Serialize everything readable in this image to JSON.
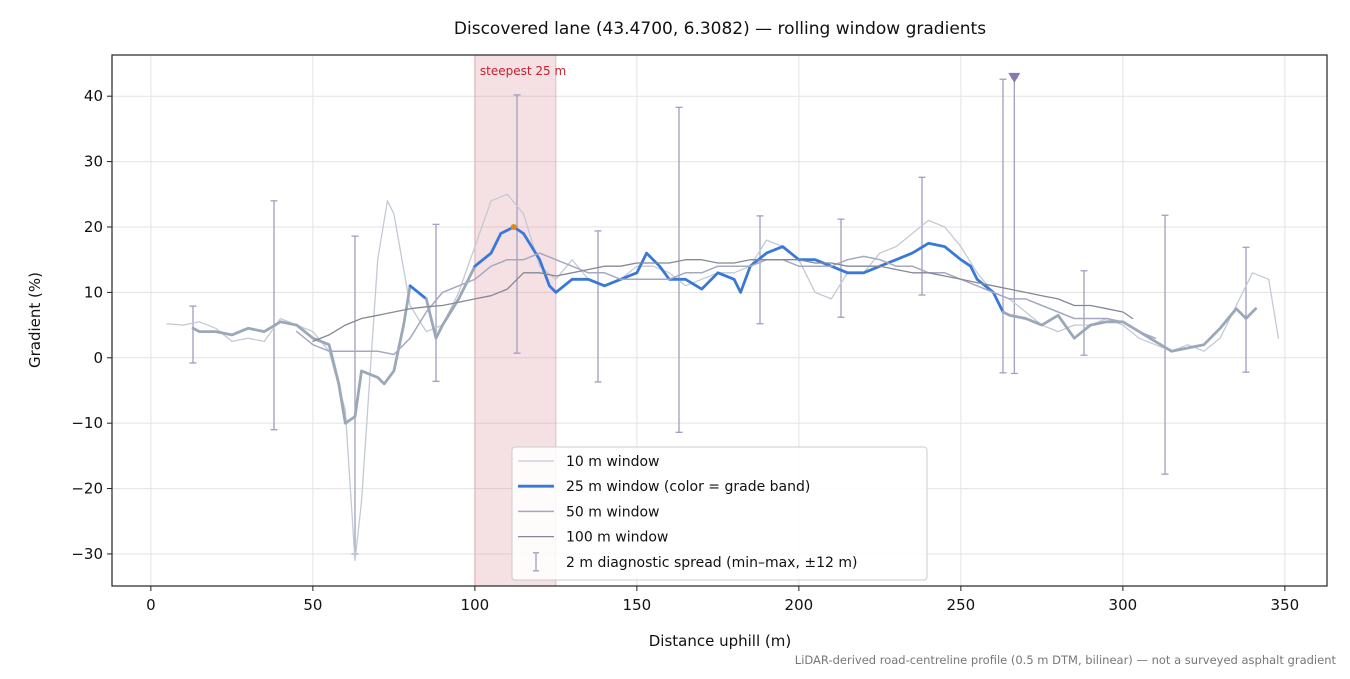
{
  "chart_data": {
    "type": "line",
    "title": "Discovered lane (43.4700, 6.3082) — rolling window gradients",
    "x_label": "Distance uphill (m)",
    "y_label": "Gradient (%)",
    "footnote": "LiDAR-derived road-centreline profile (0.5 m DTM, bilinear) — not a surveyed asphalt gradient",
    "xlim": [
      -12,
      363
    ],
    "ylim": [
      -34.9,
      46.3
    ],
    "xticks": [
      0,
      50,
      100,
      150,
      200,
      250,
      300,
      350
    ],
    "yticks": [
      {
        "value": -30,
        "label": "−30"
      },
      {
        "value": -20,
        "label": "−20"
      },
      {
        "value": -10,
        "label": "−10"
      },
      0,
      10,
      20,
      30,
      40
    ],
    "grid": true,
    "legend": "lower center",
    "highlight": {
      "label": "steepest 25 m",
      "x": [
        100,
        125
      ],
      "color": "#d9838e"
    },
    "steepest_marker": {
      "x": 112,
      "y": 20,
      "color": "#e08a1e"
    },
    "peak_marker": {
      "x": 266.5,
      "y": 42.8,
      "color": "#8a78b0"
    },
    "series": [
      {
        "name": "10 m window",
        "color": "#c3cad5",
        "width": 1.3,
        "x": [
          5,
          10,
          15,
          20,
          25,
          30,
          35,
          40,
          45,
          50,
          55,
          60,
          63,
          65,
          70,
          73,
          75,
          80,
          85,
          90,
          95,
          100,
          105,
          110,
          115,
          120,
          125,
          130,
          135,
          140,
          145,
          150,
          155,
          160,
          165,
          170,
          175,
          180,
          185,
          190,
          195,
          200,
          205,
          210,
          215,
          220,
          225,
          230,
          235,
          240,
          245,
          250,
          255,
          260,
          265,
          270,
          275,
          280,
          285,
          290,
          295,
          300,
          305,
          310,
          315,
          320,
          325,
          330,
          335,
          340,
          345,
          348
        ],
        "values": [
          5.2,
          5,
          5.5,
          4.5,
          2.5,
          3,
          2.5,
          6,
          5,
          4,
          1,
          -8,
          -31,
          -22,
          15,
          24,
          22,
          8,
          4,
          5,
          10,
          17,
          24,
          25,
          22,
          14,
          12,
          15,
          12,
          11,
          12,
          14,
          14,
          13,
          11,
          12,
          13,
          13,
          14,
          18,
          17,
          15,
          10,
          9,
          13,
          13,
          16,
          17,
          19,
          21,
          20,
          17,
          13,
          10,
          9,
          7,
          5,
          4,
          5,
          5,
          6,
          5,
          3,
          2,
          1,
          2,
          1,
          3,
          8,
          13,
          12,
          3
        ]
      },
      {
        "name": "25 m window (color = grade band)",
        "color": "#3a78d8",
        "low_color": "#9aa8b8",
        "band_threshold": 10,
        "width": 2.8,
        "x": [
          13,
          15,
          20,
          25,
          30,
          35,
          40,
          45,
          50,
          55,
          58,
          60,
          63,
          65,
          70,
          72,
          75,
          78,
          80,
          85,
          88,
          90,
          95,
          100,
          105,
          108,
          112,
          115,
          120,
          123,
          125,
          130,
          135,
          140,
          145,
          150,
          153,
          157,
          160,
          165,
          170,
          175,
          180,
          182,
          185,
          190,
          195,
          200,
          205,
          210,
          215,
          220,
          225,
          230,
          235,
          240,
          245,
          250,
          253,
          255,
          260,
          263,
          265,
          270,
          275,
          280,
          285,
          290,
          295,
          300,
          305,
          310,
          315,
          320,
          325,
          330,
          335,
          338,
          341
        ],
        "values": [
          4.5,
          4,
          4,
          3.5,
          4.5,
          4,
          5.5,
          5,
          3,
          2,
          -4,
          -10,
          -9,
          -2,
          -3,
          -4,
          -2,
          5,
          11,
          9,
          3,
          5,
          9,
          14,
          16,
          19,
          20,
          19,
          15,
          11,
          10,
          12,
          12,
          11,
          12,
          13,
          16,
          14,
          12,
          12,
          10.5,
          13,
          12,
          10,
          14,
          16,
          17,
          15,
          15,
          14,
          13,
          13,
          14,
          15,
          16,
          17.5,
          17,
          15,
          14,
          12,
          10,
          7,
          6.5,
          6,
          5,
          6.5,
          3,
          5,
          5.5,
          5.5,
          4,
          2.5,
          1,
          1.5,
          2,
          4.5,
          7.5,
          6,
          7.5
        ]
      },
      {
        "name": "50 m window",
        "color": "#a6a8c2",
        "width": 1.5,
        "x": [
          45,
          50,
          55,
          60,
          65,
          70,
          75,
          80,
          85,
          90,
          95,
          100,
          105,
          110,
          115,
          120,
          125,
          130,
          135,
          140,
          145,
          150,
          155,
          160,
          165,
          170,
          175,
          180,
          185,
          190,
          195,
          200,
          205,
          210,
          215,
          220,
          225,
          230,
          235,
          240,
          245,
          250,
          255,
          260,
          265,
          270,
          275,
          280,
          285,
          290,
          295,
          300,
          305,
          310
        ],
        "values": [
          4,
          2,
          1,
          1,
          1,
          1,
          0.5,
          3,
          7,
          10,
          11,
          12,
          14,
          15,
          15,
          16,
          15,
          14,
          13,
          13,
          12,
          12,
          12,
          12,
          13,
          13,
          14,
          14,
          14,
          15,
          15,
          14,
          14,
          14,
          15,
          15.5,
          15,
          14,
          14,
          13,
          13,
          12,
          11,
          10,
          9,
          9,
          8,
          7,
          6,
          6,
          6,
          5.5,
          4,
          3
        ]
      },
      {
        "name": "100 m window",
        "color": "#858996",
        "width": 1.3,
        "x": [
          50,
          55,
          60,
          65,
          70,
          75,
          80,
          85,
          90,
          95,
          100,
          105,
          110,
          115,
          120,
          125,
          130,
          135,
          140,
          145,
          150,
          155,
          160,
          165,
          170,
          175,
          180,
          185,
          190,
          195,
          200,
          205,
          210,
          215,
          220,
          225,
          230,
          235,
          240,
          245,
          250,
          255,
          260,
          265,
          270,
          275,
          280,
          285,
          290,
          295,
          300,
          303
        ],
        "values": [
          2.5,
          3.5,
          5,
          6,
          6.5,
          7,
          7.5,
          7.8,
          8,
          8.5,
          9,
          9.5,
          10.5,
          13,
          13,
          12.5,
          13,
          13.5,
          14,
          14,
          14.5,
          14.5,
          14.5,
          15,
          15,
          14.5,
          14.5,
          15,
          15,
          15,
          15,
          14.5,
          14.5,
          14,
          14,
          14,
          13.5,
          13,
          13,
          12.5,
          12,
          11.5,
          11,
          10.5,
          10,
          9.5,
          9,
          8,
          8,
          7.5,
          7,
          6
        ]
      }
    ],
    "error_bars": {
      "name": "2 m diagnostic spread (min–max, ±12 m)",
      "color": "#a29fc0",
      "x": [
        13,
        38,
        63,
        88,
        113,
        138,
        163,
        188,
        213,
        238,
        263,
        266.5,
        288,
        313,
        338
      ],
      "low": [
        -0.8,
        -11,
        -30,
        -3.6,
        0.7,
        -3.7,
        -11.4,
        5.2,
        6.2,
        9.6,
        -2.3,
        -2.4,
        0.4,
        -17.8,
        -2.2
      ],
      "high": [
        7.9,
        24,
        18.6,
        20.4,
        40.2,
        19.4,
        38.3,
        21.7,
        21.2,
        27.6,
        42.6,
        42.8,
        13.3,
        21.8,
        16.9
      ]
    }
  }
}
